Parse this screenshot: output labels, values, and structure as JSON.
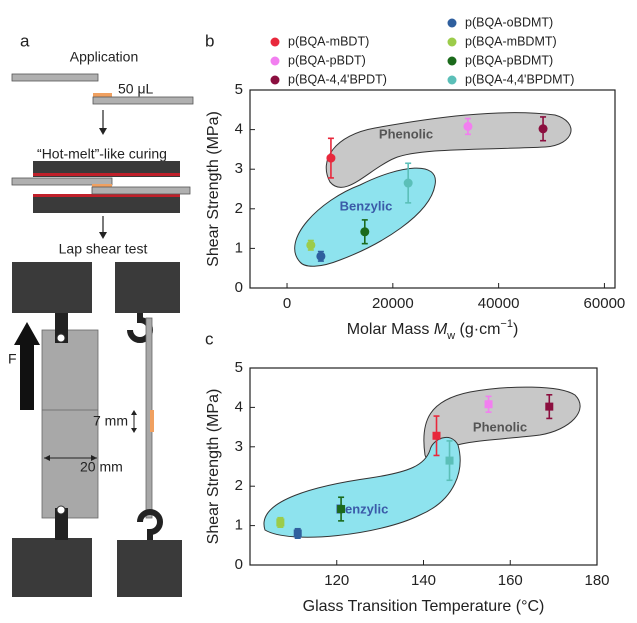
{
  "diagram": {
    "panel": "a",
    "step1": "Application",
    "volume": "50 μL",
    "step2": "“Hot-melt”-like curing",
    "step3": "Lap shear test",
    "force": "F",
    "overlap": "7 mm",
    "width": "20 mm"
  },
  "chart_data": [
    {
      "type": "scatter",
      "panel": "b",
      "marker": "circle",
      "legend": "top",
      "xlabel": [
        {
          "text": "Molar Mass ",
          "style": "normal"
        },
        {
          "text": "M",
          "style": "italic"
        },
        {
          "text": "w",
          "style": "sub"
        },
        {
          "text": " (g·cm",
          "style": "normal"
        },
        {
          "text": "−1",
          "style": "sup"
        },
        {
          "text": ")",
          "style": "normal"
        }
      ],
      "ylabel": "Shear Strength (MPa)",
      "xlim": [
        -7000,
        62000
      ],
      "xticks": [
        0,
        20000,
        40000,
        60000
      ],
      "ylim": [
        0,
        5
      ],
      "yticks": [
        0,
        1,
        2,
        3,
        4,
        5
      ],
      "annotations": [
        "Phenolic",
        "Benzylic"
      ],
      "series": [
        {
          "name": "p(BQA-mBDT)",
          "color": "#e8283c",
          "x": [
            8300
          ],
          "values": [
            3.28
          ],
          "errors": [
            0.5
          ]
        },
        {
          "name": "p(BQA-pBDT)",
          "color": "#f27ff0",
          "x": [
            34200
          ],
          "values": [
            4.08
          ],
          "errors": [
            0.2
          ]
        },
        {
          "name": "p(BQA-4,4'BPDT)",
          "color": "#8b0f3f",
          "x": [
            48400
          ],
          "values": [
            4.02
          ],
          "errors": [
            0.3
          ]
        },
        {
          "name": "p(BQA-oBDMT)",
          "color": "#2f5f9e",
          "x": [
            6400
          ],
          "values": [
            0.8
          ],
          "errors": [
            0.12
          ]
        },
        {
          "name": "p(BQA-mBDMT)",
          "color": "#9ccc4a",
          "x": [
            4500
          ],
          "values": [
            1.08
          ],
          "errors": [
            0.12
          ]
        },
        {
          "name": "p(BQA-pBDMT)",
          "color": "#1b6a1b",
          "x": [
            14700
          ],
          "values": [
            1.42
          ],
          "errors": [
            0.3
          ]
        },
        {
          "name": "p(BQA-4,4'BPDMT)",
          "color": "#5bbfb8",
          "x": [
            22900
          ],
          "values": [
            2.65
          ],
          "errors": [
            0.5
          ]
        }
      ]
    },
    {
      "type": "scatter",
      "panel": "c",
      "marker": "square",
      "xlabel": "Glass Transition Temperature (°C)",
      "ylabel": "Shear Strength (MPa)",
      "xlim": [
        100,
        180
      ],
      "xticks": [
        120,
        140,
        160,
        180
      ],
      "ylim": [
        0,
        5
      ],
      "yticks": [
        0,
        1,
        2,
        3,
        4,
        5
      ],
      "annotations": [
        "Phenolic",
        "Benzylic"
      ],
      "series": [
        {
          "color": "#e8283c",
          "x": [
            143
          ],
          "values": [
            3.28
          ],
          "errors": [
            0.5
          ]
        },
        {
          "color": "#f27ff0",
          "x": [
            155
          ],
          "values": [
            4.08
          ],
          "errors": [
            0.2
          ]
        },
        {
          "color": "#8b0f3f",
          "x": [
            169
          ],
          "values": [
            4.02
          ],
          "errors": [
            0.3
          ]
        },
        {
          "color": "#2f5f9e",
          "x": [
            111
          ],
          "values": [
            0.8
          ],
          "errors": [
            0.12
          ]
        },
        {
          "color": "#9ccc4a",
          "x": [
            107
          ],
          "values": [
            1.08
          ],
          "errors": [
            0.12
          ]
        },
        {
          "color": "#1b6a1b",
          "x": [
            121
          ],
          "values": [
            1.42
          ],
          "errors": [
            0.3
          ]
        },
        {
          "color": "#5bbfb8",
          "x": [
            146
          ],
          "values": [
            2.65
          ],
          "errors": [
            0.5
          ]
        }
      ]
    }
  ]
}
